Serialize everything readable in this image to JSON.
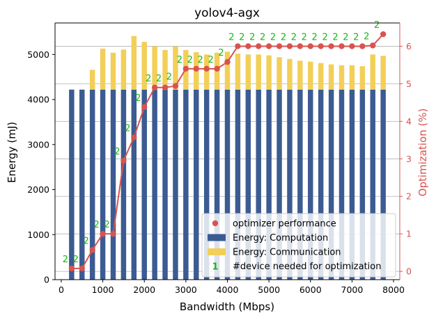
{
  "colors": {
    "computation": "#3b5b92",
    "communication": "#f2cf58",
    "optimizer": "#d9534f",
    "device_label": "#18b418",
    "grid": "#b0b0b0",
    "axis": "#000000"
  },
  "chart_data": {
    "type": "bar",
    "title": "yolov4-agx",
    "xlabel": "Bandwidth (Mbps)",
    "ylabel": "Energy (mJ)",
    "y2label": "Optimization (%)",
    "xlim": [
      -150,
      8150
    ],
    "ylim": [
      0,
      5700
    ],
    "y2lim": [
      -0.22,
      6.62
    ],
    "xticks": [
      0,
      1000,
      2000,
      3000,
      4000,
      5000,
      6000,
      7000,
      8000
    ],
    "yticks": [
      0,
      1000,
      2000,
      3000,
      4000,
      5000
    ],
    "y2ticks": [
      0,
      1,
      2,
      3,
      4,
      5,
      6
    ],
    "grid": "horizontal, right-axis ticks",
    "legend_position": "bottom-right",
    "x": [
      250,
      500,
      750,
      1000,
      1250,
      1500,
      1750,
      2000,
      2250,
      2500,
      2750,
      3000,
      3250,
      3500,
      3750,
      4000,
      4250,
      4500,
      4750,
      5000,
      5250,
      5500,
      5750,
      6000,
      6250,
      6500,
      6750,
      7000,
      7250,
      7500,
      7750
    ],
    "series": [
      {
        "name": "Energy: Computation",
        "kind": "bar",
        "values": [
          4220,
          4220,
          4220,
          4220,
          4220,
          4220,
          4220,
          4220,
          4220,
          4220,
          4220,
          4220,
          4220,
          4220,
          4220,
          4220,
          4220,
          4220,
          4220,
          4220,
          4220,
          4220,
          4220,
          4220,
          4220,
          4220,
          4220,
          4220,
          4220,
          4220,
          4220
        ]
      },
      {
        "name": "Energy: Communication",
        "kind": "stacked-bar",
        "values": [
          0,
          0,
          440,
          910,
          820,
          890,
          1190,
          1060,
          960,
          880,
          960,
          880,
          830,
          780,
          820,
          840,
          800,
          780,
          780,
          760,
          720,
          680,
          640,
          620,
          590,
          560,
          540,
          540,
          520,
          780,
          750
        ]
      },
      {
        "name": "optimizer performance",
        "kind": "line-markers",
        "axis": "right",
        "values": [
          0.08,
          0.08,
          0.57,
          1.0,
          1.0,
          2.95,
          3.57,
          4.38,
          4.9,
          4.9,
          4.94,
          5.4,
          5.4,
          5.4,
          5.4,
          5.58,
          6.0,
          6.0,
          6.0,
          6.0,
          6.0,
          6.0,
          6.0,
          6.0,
          6.0,
          6.0,
          6.0,
          6.0,
          6.0,
          6.02,
          6.32
        ]
      },
      {
        "name": "#device needed for optimization",
        "kind": "text-labels",
        "legend_glyph": "1",
        "values": [
          2,
          2,
          2,
          2,
          2,
          2,
          2,
          2,
          2,
          2,
          2,
          2,
          2,
          2,
          2,
          2,
          2,
          2,
          2,
          2,
          2,
          2,
          2,
          2,
          2,
          2,
          2,
          2,
          2,
          2,
          2
        ]
      }
    ]
  }
}
